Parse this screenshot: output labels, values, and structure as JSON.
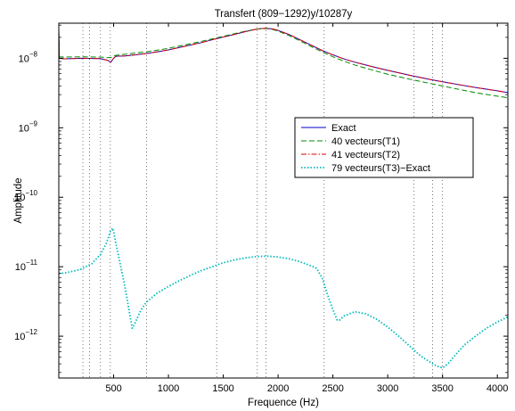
{
  "chart_data": {
    "type": "line",
    "title": "Transfert (809−1292)y/10287y",
    "xlabel": "Frequence (Hz)",
    "ylabel": "Amplitude",
    "xlim": [
      0,
      4096
    ],
    "ylim": [
      2.5e-13,
      3.2e-08
    ],
    "yscale": "log",
    "grid": "vertical dotted lines only",
    "legend_position": "right, middle",
    "x_ticks": [
      500,
      1000,
      1500,
      2000,
      2500,
      3000,
      3500,
      4000
    ],
    "x_tick_labels": [
      "500",
      "1000",
      "1500",
      "2000",
      "2500",
      "3000",
      "3500",
      "4000"
    ],
    "y_ticks": [
      {
        "value": 1e-12,
        "base": "10",
        "exp": "−12"
      },
      {
        "value": 1e-11,
        "base": "10",
        "exp": "−11"
      },
      {
        "value": 1e-10,
        "base": "10",
        "exp": "−10"
      },
      {
        "value": 1e-09,
        "base": "10",
        "exp": "−9"
      },
      {
        "value": 1e-08,
        "base": "10",
        "exp": "−8"
      }
    ],
    "vertical_lines_x": [
      220,
      280,
      380,
      470,
      800,
      1440,
      1810,
      1890,
      2420,
      3240,
      3410,
      3500
    ],
    "series": [
      {
        "name": "Exact",
        "color": "#0000cc",
        "style": "solid",
        "x": [
          0,
          5,
          50,
          200,
          380,
          440,
          475,
          500,
          520,
          600,
          700,
          800,
          900,
          1000,
          1100,
          1200,
          1300,
          1400,
          1500,
          1600,
          1700,
          1800,
          1850,
          1900,
          1950,
          2000,
          2100,
          2200,
          2300,
          2400,
          2500,
          2600,
          2700,
          2800,
          2900,
          3000,
          3200,
          3400,
          3600,
          3800,
          4000,
          4096
        ],
        "y": [
          2.5e-08,
          1e-08,
          9.8e-09,
          1e-08,
          9.9e-09,
          9.4e-09,
          8.8e-09,
          1e-08,
          1.07e-08,
          1.08e-08,
          1.12e-08,
          1.17e-08,
          1.24e-08,
          1.32e-08,
          1.43e-08,
          1.55e-08,
          1.68e-08,
          1.85e-08,
          2.02e-08,
          2.2e-08,
          2.42e-08,
          2.62e-08,
          2.68e-08,
          2.7e-08,
          2.64e-08,
          2.52e-08,
          2.2e-08,
          1.85e-08,
          1.55e-08,
          1.3e-08,
          1.12e-08,
          9.8e-09,
          8.8e-09,
          8e-09,
          7.3e-09,
          6.7e-09,
          5.7e-09,
          4.9e-09,
          4.3e-09,
          3.8e-09,
          3.4e-09,
          3.2e-09
        ]
      },
      {
        "name": "40 vecteurs(T1)",
        "color": "#008800",
        "style": "dashed",
        "x": [
          0,
          5,
          50,
          200,
          380,
          440,
          480,
          500,
          520,
          600,
          700,
          800,
          900,
          1000,
          1100,
          1200,
          1300,
          1400,
          1500,
          1600,
          1700,
          1800,
          1850,
          1900,
          1950,
          2000,
          2100,
          2200,
          2300,
          2400,
          2500,
          2600,
          2700,
          2800,
          2900,
          3000,
          3200,
          3400,
          3600,
          3800,
          4000,
          4096
        ],
        "y": [
          2.4e-08,
          1.05e-08,
          1.04e-08,
          1.05e-08,
          1.04e-08,
          1.02e-08,
          1.03e-08,
          1.08e-08,
          1.1e-08,
          1.14e-08,
          1.19e-08,
          1.24e-08,
          1.31e-08,
          1.39e-08,
          1.5e-08,
          1.62e-08,
          1.75e-08,
          1.9e-08,
          2.07e-08,
          2.25e-08,
          2.45e-08,
          2.62e-08,
          2.67e-08,
          2.68e-08,
          2.6e-08,
          2.46e-08,
          2.12e-08,
          1.78e-08,
          1.48e-08,
          1.24e-08,
          1.05e-08,
          9.1e-09,
          8e-09,
          7.2e-09,
          6.5e-09,
          5.9e-09,
          5e-09,
          4.3e-09,
          3.7e-09,
          3.2e-09,
          2.85e-09,
          2.7e-09
        ]
      },
      {
        "name": "41 vecteurs(T2)",
        "color": "#dd0000",
        "style": "dashdot",
        "x": [
          0,
          5,
          50,
          200,
          380,
          440,
          475,
          500,
          520,
          600,
          700,
          800,
          900,
          1000,
          1100,
          1200,
          1300,
          1400,
          1500,
          1600,
          1700,
          1800,
          1850,
          1900,
          1950,
          2000,
          2100,
          2200,
          2300,
          2400,
          2500,
          2600,
          2700,
          2800,
          2900,
          3000,
          3200,
          3400,
          3600,
          3800,
          4000,
          4096
        ],
        "y": [
          2.5e-08,
          1e-08,
          9.8e-09,
          1e-08,
          9.9e-09,
          9.4e-09,
          8.9e-09,
          1e-08,
          1.07e-08,
          1.08e-08,
          1.12e-08,
          1.17e-08,
          1.24e-08,
          1.32e-08,
          1.43e-08,
          1.55e-08,
          1.68e-08,
          1.85e-08,
          2.02e-08,
          2.2e-08,
          2.42e-08,
          2.62e-08,
          2.68e-08,
          2.7e-08,
          2.64e-08,
          2.52e-08,
          2.2e-08,
          1.85e-08,
          1.55e-08,
          1.3e-08,
          1.12e-08,
          9.8e-09,
          8.8e-09,
          8e-09,
          7.3e-09,
          6.7e-09,
          5.7e-09,
          4.9e-09,
          4.3e-09,
          3.8e-09,
          3.4e-09,
          3.2e-09
        ]
      },
      {
        "name": "79 vecteurs(T3)−Exact",
        "color": "#00bbbb",
        "style": "dotted",
        "x": [
          0,
          50,
          100,
          200,
          300,
          380,
          430,
          470,
          490,
          500,
          520,
          560,
          600,
          640,
          670,
          700,
          750,
          800,
          900,
          1000,
          1100,
          1200,
          1300,
          1400,
          1500,
          1600,
          1700,
          1800,
          1900,
          2000,
          2100,
          2200,
          2300,
          2350,
          2400,
          2450,
          2500,
          2540,
          2560,
          2600,
          2700,
          2800,
          2900,
          3000,
          3100,
          3200,
          3300,
          3400,
          3450,
          3500,
          3550,
          3600,
          3700,
          3800,
          3900,
          4000,
          4096
        ],
        "y": [
          8e-12,
          8.1e-12,
          8.4e-12,
          9.2e-12,
          1.1e-11,
          1.5e-11,
          2.1e-11,
          3.2e-11,
          3.6e-11,
          3.2e-11,
          2.2e-11,
          1.1e-11,
          5.5e-12,
          2.4e-12,
          1.3e-12,
          1.6e-12,
          2.4e-12,
          3.1e-12,
          4.2e-12,
          5.2e-12,
          6.3e-12,
          7.5e-12,
          8.8e-12,
          1e-11,
          1.14e-11,
          1.25e-11,
          1.34e-11,
          1.4e-11,
          1.42e-11,
          1.38e-11,
          1.3e-11,
          1.18e-11,
          1.03e-11,
          9.5e-12,
          7e-12,
          4e-12,
          2.4e-12,
          1.7e-12,
          1.7e-12,
          1.95e-12,
          2.25e-12,
          2.1e-12,
          1.75e-12,
          1.35e-12,
          1e-12,
          7.2e-13,
          5.2e-13,
          4.1e-13,
          3.7e-13,
          3.5e-13,
          4e-13,
          5e-13,
          7.5e-13,
          1e-12,
          1.3e-12,
          1.6e-12,
          1.9e-12
        ]
      }
    ]
  }
}
